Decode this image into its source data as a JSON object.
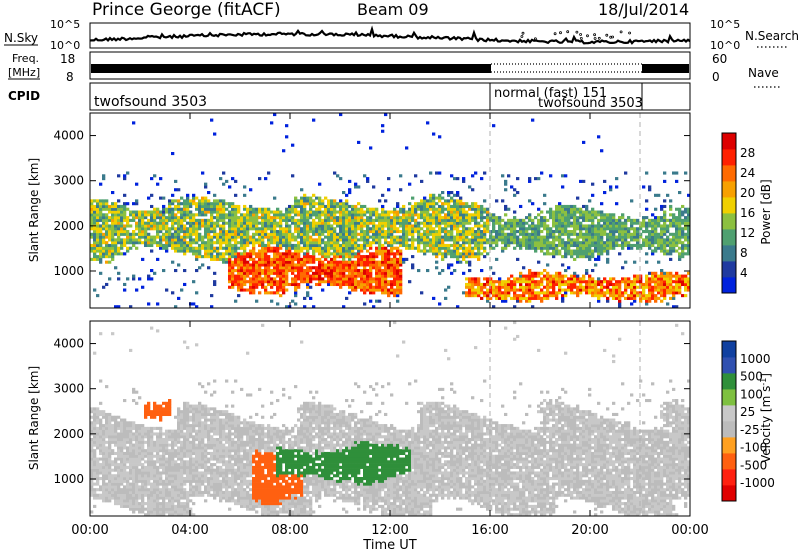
{
  "header": {
    "station": "Prince George (fitACF)",
    "beam": "Beam 09",
    "date": "18/Jul/2014"
  },
  "noise_panel": {
    "left_label": "N.Sky",
    "right_label": "N.Search",
    "left_ticks": [
      "10^5",
      "10^0"
    ],
    "right_ticks": [
      "10^5",
      "10^0"
    ]
  },
  "freq_panel": {
    "left_label_line1": "Freq.",
    "left_label_line2": "[MHz]",
    "right_label": "Nave",
    "left_ticks": [
      "18",
      "8"
    ],
    "right_ticks": [
      "60",
      "0"
    ]
  },
  "cpid_panel": {
    "label": "CPID",
    "segments": [
      {
        "text": "twofsound 3503",
        "start_h": 0,
        "end_h": 16
      },
      {
        "text": "normal (fast) 151",
        "start_h": 16,
        "end_h": 22
      },
      {
        "text": "twofsound 3503",
        "start_h": 16,
        "end_h": 22
      }
    ]
  },
  "x_axis": {
    "label": "Time UT",
    "ticks": [
      "00:00",
      "04:00",
      "08:00",
      "12:00",
      "16:00",
      "20:00",
      "00:00"
    ],
    "range_h": [
      0,
      24
    ],
    "mode_change_h": [
      16,
      22
    ]
  },
  "colors": {
    "power_scale": [
      "#0022dd",
      "#1f3aa0",
      "#3a7a8c",
      "#4fa070",
      "#8cc040",
      "#f0d000",
      "#f7a000",
      "#ff6a00",
      "#ff2000",
      "#dd0000"
    ],
    "velocity_scale": [
      "#1040a0",
      "#3050b0",
      "#2f8f3a",
      "#7ec040",
      "#c8c8c8",
      "#bcbcbc",
      "#ffa020",
      "#ff6010",
      "#ff2010",
      "#e00000"
    ]
  },
  "chart_data": [
    {
      "type": "heatmap",
      "title": "",
      "xlabel": "Time UT",
      "ylabel": "Slant Range [km]",
      "x_range_h": [
        0,
        24
      ],
      "ylim": [
        180,
        4500
      ],
      "yticks": [
        "1000",
        "2000",
        "3000",
        "4000"
      ],
      "colorbar": {
        "label": "Power [dB]",
        "ticks": [
          "4",
          "8",
          "12",
          "16",
          "20",
          "24",
          "28"
        ],
        "range": [
          0,
          32
        ]
      },
      "features": [
        {
          "band": "upper F-region echoes",
          "t_start_h": 0.0,
          "t_end_h": 16.0,
          "range_km": [
            1400,
            2500
          ],
          "power_db": [
            8,
            20
          ]
        },
        {
          "band": "strong near-range echoes",
          "t_start_h": 5.5,
          "t_end_h": 12.5,
          "range_km": [
            600,
            1400
          ],
          "power_db": [
            20,
            30
          ]
        },
        {
          "band": "evening near-range echoes",
          "t_start_h": 15.0,
          "t_end_h": 24.0,
          "range_km": [
            400,
            900
          ],
          "power_db": [
            16,
            30
          ]
        },
        {
          "band": "evening upper echoes",
          "t_start_h": 16.0,
          "t_end_h": 24.0,
          "range_km": [
            1400,
            2300
          ],
          "power_db": [
            8,
            16
          ]
        }
      ]
    },
    {
      "type": "heatmap",
      "title": "",
      "xlabel": "Time UT",
      "ylabel": "Slant Range [km]",
      "x_range_h": [
        0,
        24
      ],
      "ylim": [
        180,
        4500
      ],
      "yticks": [
        "1000",
        "2000",
        "3000",
        "4000"
      ],
      "colorbar": {
        "label": "Velocity [m s^-1]",
        "ticks": [
          "1000",
          "500",
          "100",
          "25",
          "-25",
          "-100",
          "-500",
          "-1000"
        ],
        "range": [
          -1000,
          1000
        ]
      },
      "features": [
        {
          "band": "ground scatter",
          "t_start_h": 0.0,
          "t_end_h": 24.0,
          "range_km": [
            300,
            2400
          ],
          "velocity_ms": [
            -25,
            25
          ]
        },
        {
          "band": "receding flow",
          "t_start_h": 6.5,
          "t_end_h": 8.5,
          "range_km": [
            600,
            1500
          ],
          "velocity_ms": [
            -500,
            -100
          ]
        },
        {
          "band": "approaching flow",
          "t_start_h": 7.5,
          "t_end_h": 12.8,
          "range_km": [
            1000,
            1700
          ],
          "velocity_ms": [
            100,
            500
          ]
        },
        {
          "band": "receding patch",
          "t_start_h": 2.2,
          "t_end_h": 3.2,
          "range_km": [
            2400,
            2700
          ],
          "velocity_ms": [
            -500,
            -100
          ]
        }
      ]
    }
  ]
}
